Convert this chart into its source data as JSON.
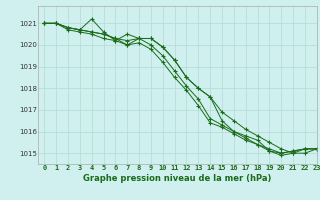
{
  "title": "Graphe pression niveau de la mer (hPa)",
  "background_color": "#cff0ee",
  "grid_color": "#b8dcd8",
  "line_color": "#1a6b1a",
  "xlim": [
    -0.5,
    23
  ],
  "ylim": [
    1014.5,
    1021.8
  ],
  "yticks": [
    1015,
    1016,
    1017,
    1018,
    1019,
    1020,
    1021
  ],
  "xticks": [
    0,
    1,
    2,
    3,
    4,
    5,
    6,
    7,
    8,
    9,
    10,
    11,
    12,
    13,
    14,
    15,
    16,
    17,
    18,
    19,
    20,
    21,
    22,
    23
  ],
  "series": [
    [
      1021.0,
      1021.0,
      1020.8,
      1020.7,
      1020.6,
      1020.5,
      1020.3,
      1020.0,
      1020.3,
      1020.3,
      1019.9,
      1019.3,
      1018.5,
      1018.0,
      1017.6,
      1016.9,
      1016.5,
      1016.1,
      1015.8,
      1015.5,
      1015.2,
      1015.0,
      1015.0,
      1015.2
    ],
    [
      1021.0,
      1021.0,
      1020.8,
      1020.7,
      1021.2,
      1020.6,
      1020.2,
      1020.5,
      1020.3,
      1020.3,
      1019.9,
      1019.3,
      1018.5,
      1018.0,
      1017.6,
      1016.5,
      1016.0,
      1015.8,
      1015.6,
      1015.1,
      1014.9,
      1015.0,
      1015.2,
      1015.2
    ],
    [
      1021.0,
      1021.0,
      1020.8,
      1020.7,
      1020.6,
      1020.5,
      1020.3,
      1020.2,
      1020.3,
      1020.0,
      1019.5,
      1018.8,
      1018.1,
      1017.5,
      1016.6,
      1016.3,
      1016.0,
      1015.7,
      1015.4,
      1015.1,
      1015.0,
      1015.1,
      1015.2,
      1015.2
    ],
    [
      1021.0,
      1021.0,
      1020.7,
      1020.6,
      1020.5,
      1020.3,
      1020.2,
      1020.0,
      1020.1,
      1019.8,
      1019.2,
      1018.5,
      1017.9,
      1017.2,
      1016.4,
      1016.2,
      1015.9,
      1015.6,
      1015.4,
      1015.2,
      1015.0,
      1015.1,
      1015.2,
      1015.2
    ]
  ],
  "title_fontsize": 6,
  "xtick_fontsize": 5,
  "ytick_fontsize": 5
}
